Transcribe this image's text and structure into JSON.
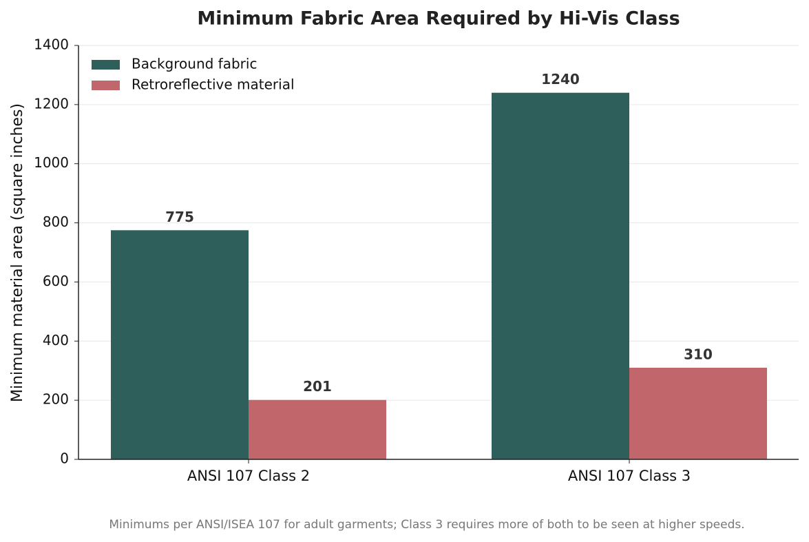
{
  "chart_data": {
    "type": "grouped-bar",
    "title": "Minimum Fabric Area Required by Hi-Vis Class",
    "ylabel": "Minimum material area (square inches)",
    "footnote": "Minimums per ANSI/ISEA 107 for adult garments; Class 3 requires more of both to be seen at higher speeds.",
    "categories": [
      "ANSI 107 Class 2",
      "ANSI 107 Class 3"
    ],
    "series": [
      {
        "name": "Background fabric",
        "color": "#2e5f5b",
        "values": [
          775,
          1240
        ]
      },
      {
        "name": "Retroreflective material",
        "color": "#c1676b",
        "values": [
          201,
          310
        ]
      }
    ],
    "ylim": [
      0,
      1400
    ],
    "yticks": [
      0,
      200,
      400,
      600,
      800,
      1000,
      1200,
      1400
    ],
    "grid": true,
    "legend": "upper-left"
  }
}
